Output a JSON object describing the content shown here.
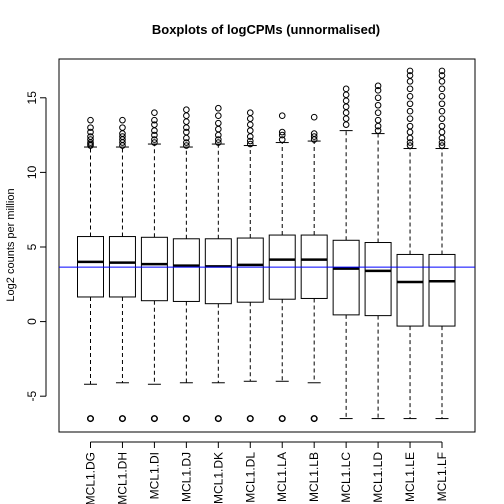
{
  "chart_data": {
    "type": "boxplot",
    "title": "Boxplots of logCPMs (unnormalised)",
    "xlabel": "",
    "ylabel": "Log2 counts per million",
    "ylim": [
      -7.4,
      17.6
    ],
    "yticks": [
      -5,
      0,
      5,
      10,
      15
    ],
    "reference_line": {
      "y": 3.65,
      "color": "#0000ff"
    },
    "categories": [
      "MCL1.DG",
      "MCL1.DH",
      "MCL1.DI",
      "MCL1.DJ",
      "MCL1.DK",
      "MCL1.DL",
      "MCL1.LA",
      "MCL1.LB",
      "MCL1.LC",
      "MCL1.LD",
      "MCL1.LE",
      "MCL1.LF"
    ],
    "boxes": [
      {
        "q1": 1.65,
        "median": 4.0,
        "q3": 5.7,
        "whisker_low": -4.2,
        "whisker_high": 11.7,
        "outliers_high": [
          11.8,
          11.9,
          12.0,
          12.2,
          12.4,
          12.7,
          13.0,
          13.5
        ],
        "outliers_low": [
          -6.5
        ]
      },
      {
        "q1": 1.65,
        "median": 3.95,
        "q3": 5.7,
        "whisker_low": -4.1,
        "whisker_high": 11.7,
        "outliers_high": [
          11.8,
          12.0,
          12.2,
          12.4,
          12.6,
          13.0,
          13.5
        ],
        "outliers_low": [
          -6.5
        ]
      },
      {
        "q1": 1.4,
        "median": 3.85,
        "q3": 5.65,
        "whisker_low": -4.2,
        "whisker_high": 11.9,
        "outliers_high": [
          12.0,
          12.2,
          12.5,
          12.8,
          13.2,
          13.5,
          14.0
        ],
        "outliers_low": [
          -6.5
        ]
      },
      {
        "q1": 1.35,
        "median": 3.75,
        "q3": 5.55,
        "whisker_low": -4.1,
        "whisker_high": 11.7,
        "outliers_high": [
          11.8,
          12.0,
          12.3,
          12.7,
          13.0,
          13.4,
          13.8,
          14.2
        ],
        "outliers_low": [
          -6.5
        ]
      },
      {
        "q1": 1.2,
        "median": 3.7,
        "q3": 5.55,
        "whisker_low": -4.1,
        "whisker_high": 11.9,
        "outliers_high": [
          12.0,
          12.2,
          12.5,
          12.9,
          13.3,
          13.8,
          14.3
        ],
        "outliers_low": [
          -6.5
        ]
      },
      {
        "q1": 1.3,
        "median": 3.8,
        "q3": 5.6,
        "whisker_low": -4.0,
        "whisker_high": 11.8,
        "outliers_high": [
          11.9,
          12.1,
          12.4,
          12.8,
          13.2,
          13.6,
          14.0
        ],
        "outliers_low": [
          -6.5
        ]
      },
      {
        "q1": 1.5,
        "median": 4.15,
        "q3": 5.8,
        "whisker_low": -4.0,
        "whisker_high": 12.0,
        "outliers_high": [
          12.2,
          12.5,
          12.7,
          13.8
        ],
        "outliers_low": [
          -6.5
        ]
      },
      {
        "q1": 1.55,
        "median": 4.15,
        "q3": 5.8,
        "whisker_low": -4.1,
        "whisker_high": 12.1,
        "outliers_high": [
          12.2,
          12.4,
          12.6,
          13.7
        ],
        "outliers_low": [
          -6.5
        ]
      },
      {
        "q1": 0.45,
        "median": 3.55,
        "q3": 5.45,
        "whisker_low": -6.5,
        "whisker_high": 12.8,
        "outliers_high": [
          13.2,
          13.6,
          14.0,
          14.4,
          14.8,
          15.2,
          15.6
        ],
        "outliers_low": []
      },
      {
        "q1": 0.4,
        "median": 3.4,
        "q3": 5.3,
        "whisker_low": -6.5,
        "whisker_high": 12.6,
        "outliers_high": [
          12.8,
          13.1,
          13.5,
          14.0,
          14.5,
          15.0,
          15.5,
          15.8
        ],
        "outliers_low": []
      },
      {
        "q1": -0.3,
        "median": 2.65,
        "q3": 4.5,
        "whisker_low": -6.5,
        "whisker_high": 11.6,
        "outliers_high": [
          11.8,
          12.0,
          12.3,
          12.7,
          13.1,
          13.6,
          14.1,
          14.6,
          15.1,
          15.6,
          16.1,
          16.5,
          16.8
        ],
        "outliers_low": []
      },
      {
        "q1": -0.3,
        "median": 2.7,
        "q3": 4.5,
        "whisker_low": -6.5,
        "whisker_high": 11.6,
        "outliers_high": [
          11.8,
          12.0,
          12.3,
          12.7,
          13.1,
          13.6,
          14.1,
          14.6,
          15.1,
          15.6,
          16.1,
          16.5,
          16.8
        ],
        "outliers_low": []
      }
    ]
  }
}
